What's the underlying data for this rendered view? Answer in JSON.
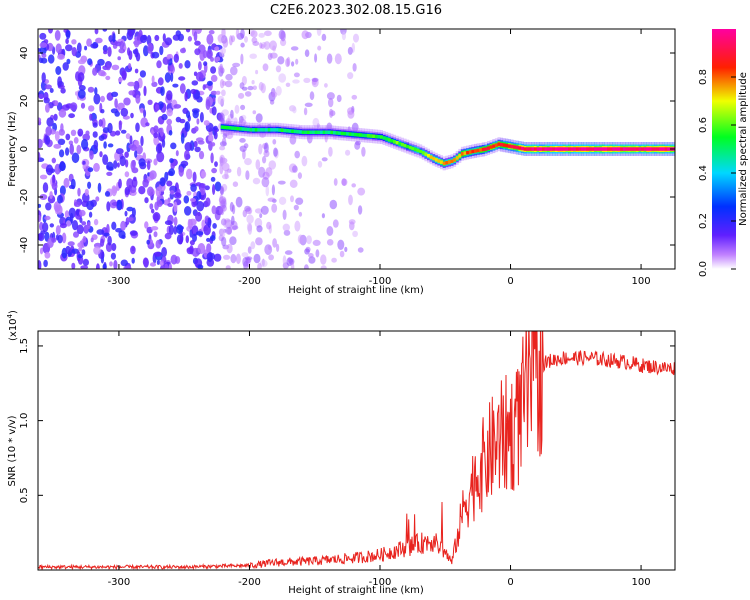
{
  "title": "C2E6.2023.302.08.15.G16",
  "colors": {
    "snr_line": "#e8231e",
    "noise": "#7a1ee0",
    "background": "#ffffff"
  },
  "chart_data": [
    {
      "type": "heatmap",
      "xlabel": "Height of straight line (km)",
      "ylabel": "Frequency (Hz)",
      "xlim": [
        -362,
        126
      ],
      "ylim": [
        -50,
        50
      ],
      "xticks": [
        -300,
        -200,
        -100,
        0,
        100
      ],
      "xtick_labels": [
        "-300",
        "-200",
        "-100",
        "0",
        "100"
      ],
      "yticks": [
        -40,
        -20,
        0,
        20,
        40
      ],
      "ytick_labels": [
        "-40",
        "-20",
        "0",
        "20",
        "40"
      ],
      "colorbar": {
        "label": "Normalized spectral amplitude",
        "range": [
          0,
          1
        ],
        "ticks": [
          0.0,
          0.2,
          0.4,
          0.6,
          0.8
        ],
        "tick_labels": [
          "0.0",
          "0.2",
          "0.4",
          "0.6",
          "0.8"
        ],
        "colormap": "rainbow (white-violet-blue-cyan-green-yellow-red-magenta)"
      },
      "signal_track": [
        {
          "x": -220,
          "y": 9,
          "amp": 0.55
        },
        {
          "x": -200,
          "y": 8,
          "amp": 0.5
        },
        {
          "x": -180,
          "y": 8,
          "amp": 0.5
        },
        {
          "x": -160,
          "y": 7,
          "amp": 0.5
        },
        {
          "x": -140,
          "y": 7,
          "amp": 0.5
        },
        {
          "x": -120,
          "y": 6,
          "amp": 0.55
        },
        {
          "x": -100,
          "y": 5,
          "amp": 0.55
        },
        {
          "x": -90,
          "y": 3,
          "amp": 0.6
        },
        {
          "x": -80,
          "y": 1,
          "amp": 0.6
        },
        {
          "x": -70,
          "y": -1,
          "amp": 0.65
        },
        {
          "x": -60,
          "y": -4,
          "amp": 0.7
        },
        {
          "x": -52,
          "y": -6,
          "amp": 0.75
        },
        {
          "x": -45,
          "y": -5,
          "amp": 0.75
        },
        {
          "x": -38,
          "y": -2,
          "amp": 0.8
        },
        {
          "x": -30,
          "y": -1,
          "amp": 0.8
        },
        {
          "x": -20,
          "y": 0,
          "amp": 0.85
        },
        {
          "x": -10,
          "y": 2,
          "amp": 0.85
        },
        {
          "x": 0,
          "y": 1,
          "amp": 0.9
        },
        {
          "x": 10,
          "y": 0,
          "amp": 0.95
        },
        {
          "x": 40,
          "y": 0,
          "amp": 0.98
        },
        {
          "x": 80,
          "y": 0,
          "amp": 0.97
        },
        {
          "x": 126,
          "y": 0,
          "amp": 0.97
        }
      ]
    },
    {
      "type": "line",
      "xlabel": "Height of straight line (km)",
      "ylabel": "SNR (10 * v/v)",
      "y_multiplier_label": "(x10",
      "y_multiplier_exp": "4",
      "y_multiplier_close": ")",
      "xlim": [
        -362,
        126
      ],
      "ylim": [
        0,
        1.6
      ],
      "xticks": [
        -300,
        -200,
        -100,
        0,
        100
      ],
      "xtick_labels": [
        "-300",
        "-200",
        "-100",
        "0",
        "100"
      ],
      "yticks": [
        0.5,
        1.0,
        1.5
      ],
      "ytick_labels": [
        "0.5",
        "1.0",
        "1.5"
      ],
      "series": [
        {
          "x": [
            -362,
            -300,
            -250,
            -200,
            -180,
            -150,
            -120,
            -100,
            -80,
            -60,
            -50,
            -45,
            -40,
            -35,
            -30,
            -25,
            -20,
            -15,
            -10,
            -5,
            0,
            5,
            10,
            15,
            20,
            25,
            30,
            40,
            50,
            60,
            70,
            80,
            90,
            100,
            110,
            120,
            126
          ],
          "y": [
            0.02,
            0.02,
            0.02,
            0.03,
            0.05,
            0.06,
            0.08,
            0.1,
            0.15,
            0.2,
            0.12,
            0.05,
            0.25,
            0.45,
            0.55,
            0.65,
            0.72,
            0.8,
            0.85,
            0.9,
            0.92,
            0.95,
            1.1,
            1.25,
            1.33,
            1.38,
            1.4,
            1.42,
            1.42,
            1.42,
            1.41,
            1.4,
            1.39,
            1.37,
            1.36,
            1.35,
            1.35
          ]
        }
      ]
    }
  ]
}
